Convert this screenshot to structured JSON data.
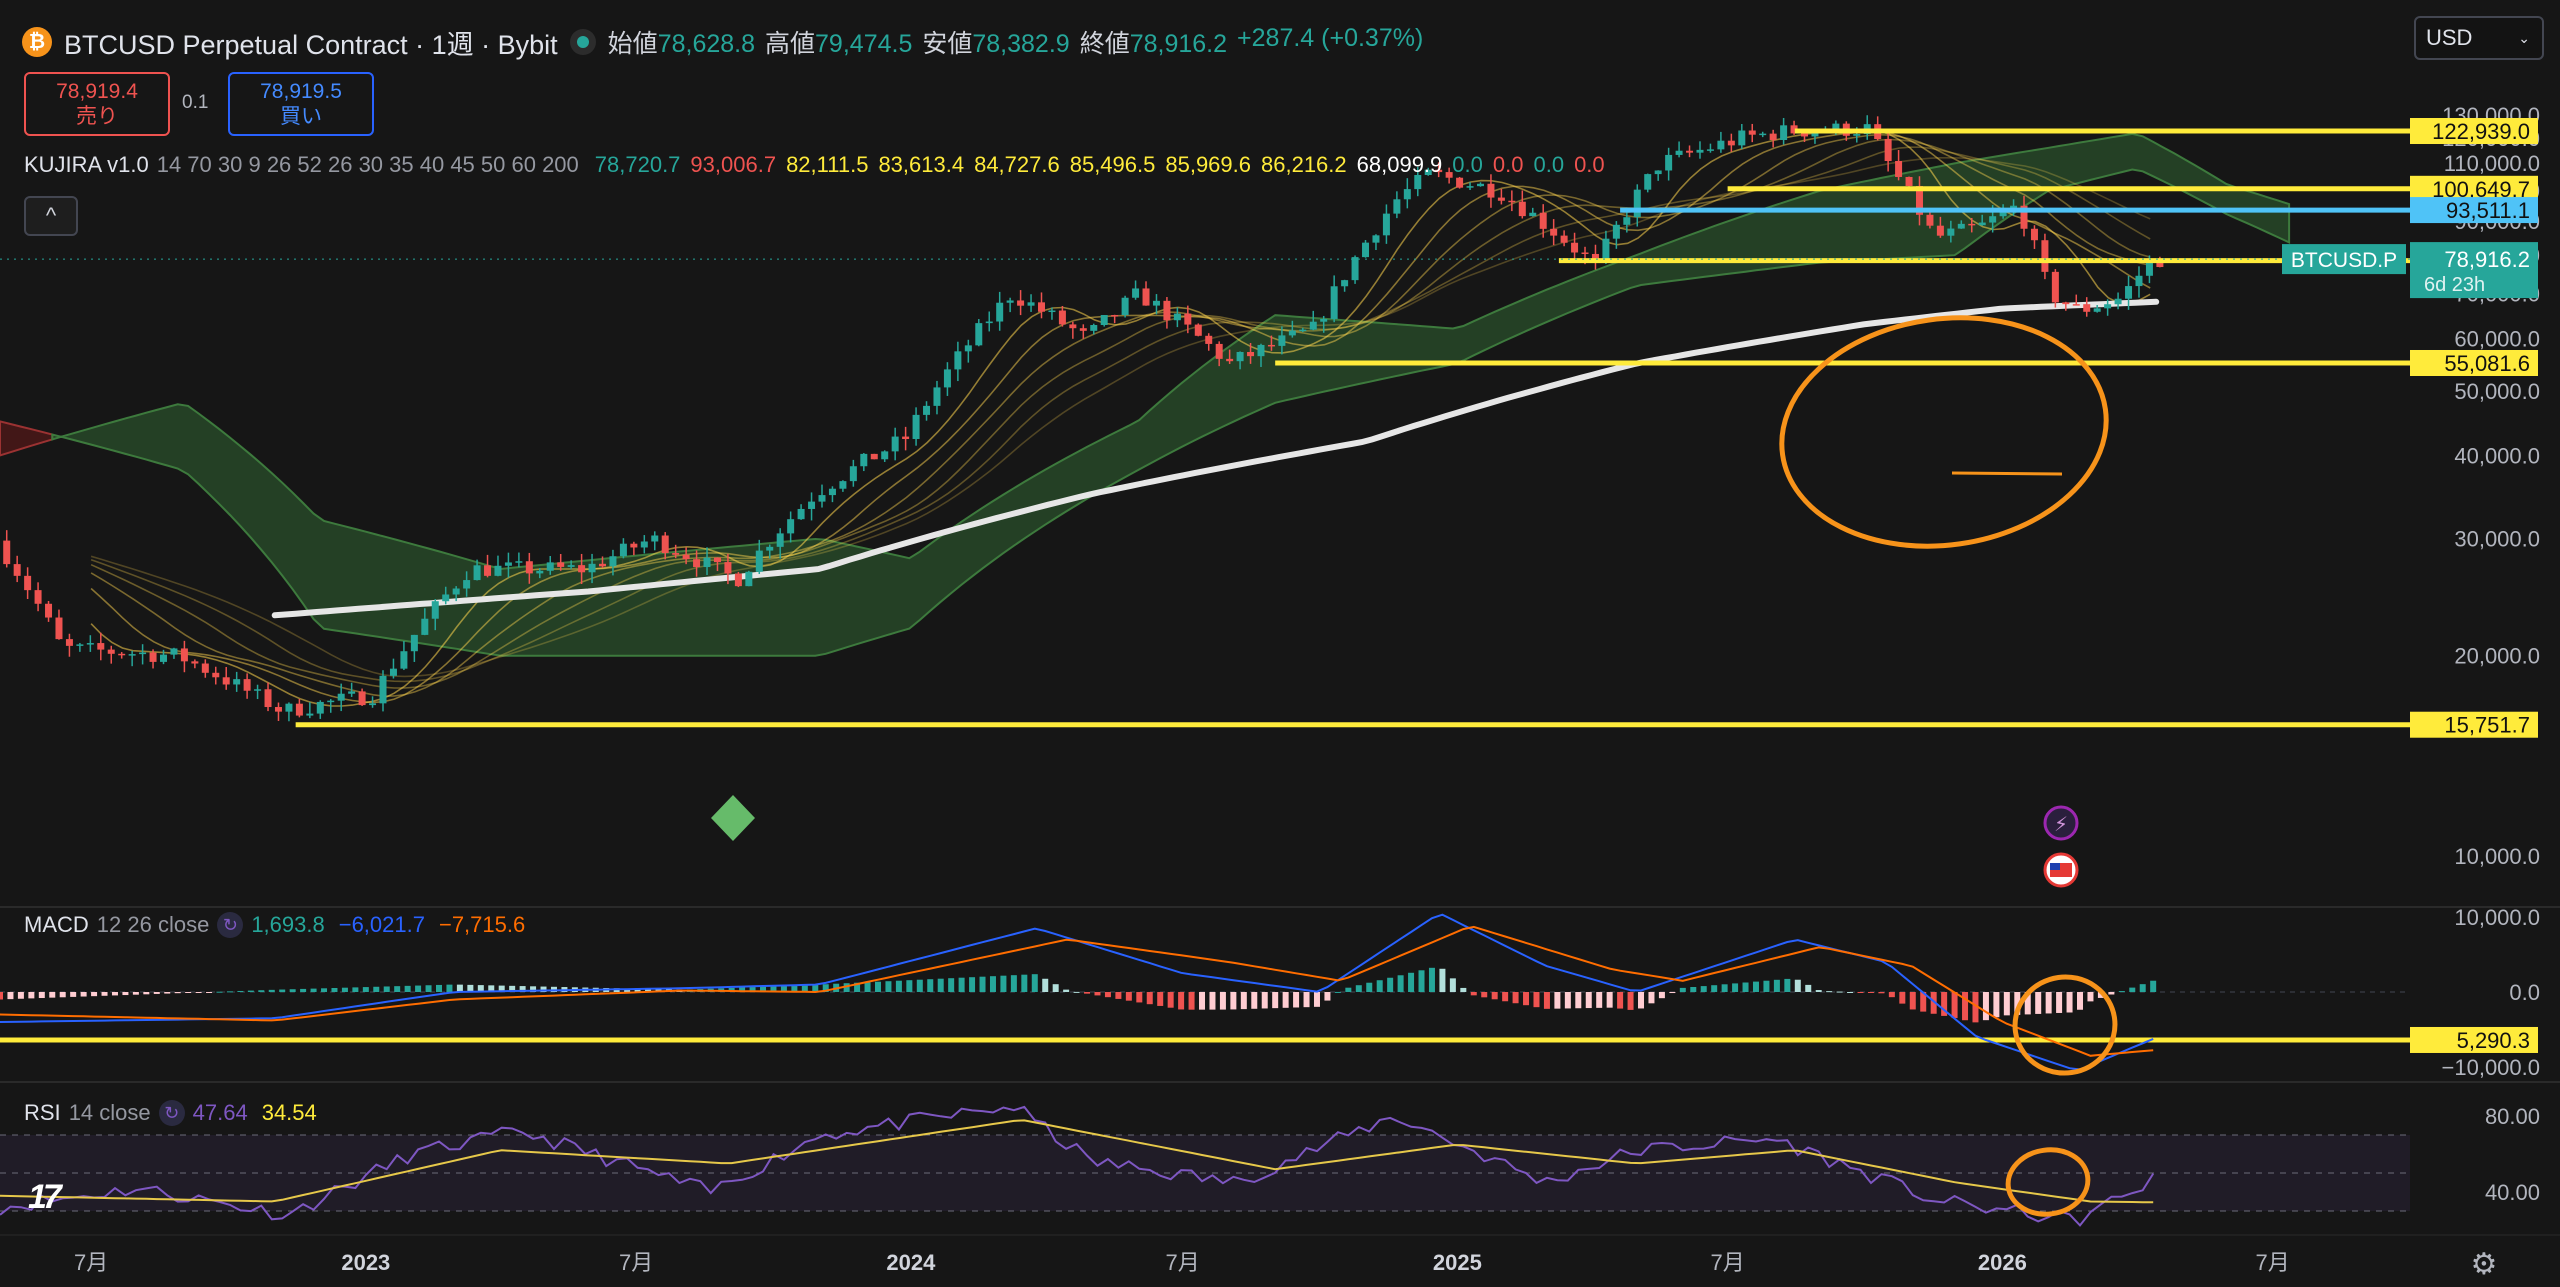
{
  "header": {
    "coin_glyph": "₿",
    "title": "BTCUSD Perpetual Contract · 1週 · Bybit",
    "ohlc": [
      {
        "label": "始値",
        "value": "78,628.8"
      },
      {
        "label": "高値",
        "value": "79,474.5"
      },
      {
        "label": "安値",
        "value": "78,382.9"
      },
      {
        "label": "終値",
        "value": "78,916.2"
      }
    ],
    "change": "+287.4 (+0.37%)"
  },
  "trade": {
    "sell_price": "78,919.4",
    "sell_label": "売り",
    "spread": "0.1",
    "buy_price": "78,919.5",
    "buy_label": "買い"
  },
  "currency": "USD",
  "collapse_glyph": "^",
  "indicators": {
    "kujira": {
      "name": "KUJIRA v1.0",
      "params": "14 70 30 9 26 52 26 30 35 40 45 50 60 200",
      "values": [
        {
          "v": "78,720.7",
          "c": "#26a69a"
        },
        {
          "v": "93,006.7",
          "c": "#ef5350"
        },
        {
          "v": "82,111.5",
          "c": "#ffeb3b"
        },
        {
          "v": "83,613.4",
          "c": "#ffeb3b"
        },
        {
          "v": "84,727.6",
          "c": "#ffeb3b"
        },
        {
          "v": "85,496.5",
          "c": "#ffeb3b"
        },
        {
          "v": "85,969.6",
          "c": "#ffeb3b"
        },
        {
          "v": "86,216.2",
          "c": "#ffeb3b"
        },
        {
          "v": "68,099.9",
          "c": "#ffffff"
        },
        {
          "v": "0.0",
          "c": "#26a69a"
        },
        {
          "v": "0.0",
          "c": "#ef5350"
        },
        {
          "v": "0.0",
          "c": "#26a69a"
        },
        {
          "v": "0.0",
          "c": "#ef5350"
        }
      ]
    },
    "macd": {
      "name": "MACD",
      "params": "12 26 close",
      "values": [
        {
          "v": "1,693.8",
          "c": "#26a69a"
        },
        {
          "v": "−6,021.7",
          "c": "#2962ff"
        },
        {
          "v": "−7,715.6",
          "c": "#ff6d00"
        }
      ]
    },
    "rsi": {
      "name": "RSI",
      "params": "14 close",
      "values": [
        {
          "v": "47.64",
          "c": "#7e57c2"
        },
        {
          "v": "34.54",
          "c": "#ffeb3b"
        }
      ]
    }
  },
  "tv_logo": "17",
  "gear_glyph": "⚙",
  "chart_data": {
    "type": "candlestick",
    "symbol_label": "BTCUSD.P",
    "countdown": "6d 23h",
    "last_price": "78,916.2",
    "price_axis_ticks": [
      "130,000.0",
      "120,000.0",
      "110,000.0",
      "100,000.0",
      "90,000.0",
      "80,000.0",
      "70,000.0",
      "60,000.0",
      "50,000.0",
      "40,000.0",
      "30,000.0",
      "20,000.0",
      "10,000.0"
    ],
    "ylim": [
      5000,
      130000
    ],
    "x_ticks": [
      {
        "label": "7月",
        "date": "2022-07-01",
        "bold": false
      },
      {
        "label": "2023",
        "date": "2023-01-01",
        "bold": true
      },
      {
        "label": "7月",
        "date": "2023-07-01",
        "bold": false
      },
      {
        "label": "2024",
        "date": "2024-01-01",
        "bold": true
      },
      {
        "label": "7月",
        "date": "2024-07-01",
        "bold": false
      },
      {
        "label": "2025",
        "date": "2025-01-01",
        "bold": true
      },
      {
        "label": "7月",
        "date": "2025-07-01",
        "bold": false
      },
      {
        "label": "2026",
        "date": "2026-01-01",
        "bold": true
      },
      {
        "label": "7月",
        "date": "2026-07-01",
        "bold": false
      }
    ],
    "horizontal_levels": [
      {
        "price": 122939.0,
        "label": "122,939.0",
        "color": "#ffeb3b",
        "from": "2025-08-15"
      },
      {
        "price": 100649.7,
        "label": "100,649.7",
        "color": "#ffeb3b",
        "from": "2025-07-01"
      },
      {
        "price": 93511.1,
        "label": "93,511.1",
        "color": "#4fc3f7",
        "from": "2025-04-20"
      },
      {
        "price": 78501.9,
        "label": "78,501.9",
        "color": "#ffeb3b",
        "from": "2025-03-10"
      },
      {
        "price": 55081.6,
        "label": "55,081.6",
        "color": "#ffeb3b",
        "from": "2024-09-01"
      },
      {
        "price": 15751.7,
        "label": "15,751.7",
        "color": "#ffeb3b",
        "from": "2022-11-15"
      },
      {
        "price": 5290.3,
        "label": "5,290.3",
        "color": "#ffeb3b",
        "from": "2022-05-01"
      }
    ],
    "price_anchors": [
      [
        "2022-05-01",
        30000
      ],
      [
        "2022-06-15",
        20500
      ],
      [
        "2022-09-01",
        20000
      ],
      [
        "2022-11-10",
        16500
      ],
      [
        "2023-01-10",
        17500
      ],
      [
        "2023-03-15",
        27000
      ],
      [
        "2023-06-01",
        27000
      ],
      [
        "2023-07-15",
        30000
      ],
      [
        "2023-09-10",
        26000
      ],
      [
        "2023-11-01",
        35000
      ],
      [
        "2024-01-01",
        42500
      ],
      [
        "2024-03-12",
        70000
      ],
      [
        "2024-05-01",
        60000
      ],
      [
        "2024-06-05",
        70000
      ],
      [
        "2024-08-05",
        55000
      ],
      [
        "2024-10-01",
        62000
      ],
      [
        "2024-11-25",
        97000
      ],
      [
        "2024-12-17",
        106000
      ],
      [
        "2025-02-01",
        100000
      ],
      [
        "2025-04-07",
        77000
      ],
      [
        "2025-05-20",
        110000
      ],
      [
        "2025-07-14",
        120000
      ],
      [
        "2025-08-15",
        123000
      ],
      [
        "2025-10-06",
        124000
      ],
      [
        "2025-10-20",
        110000
      ],
      [
        "2025-11-20",
        85000
      ],
      [
        "2025-12-20",
        88000
      ],
      [
        "2026-01-15",
        95000
      ],
      [
        "2026-02-05",
        70000
      ],
      [
        "2026-02-25",
        66000
      ],
      [
        "2026-03-25",
        69000
      ],
      [
        "2026-04-15",
        78900
      ]
    ],
    "ma200_anchors": [
      [
        "2022-11-01",
        23000
      ],
      [
        "2023-06-01",
        25000
      ],
      [
        "2023-11-01",
        27000
      ],
      [
        "2024-05-01",
        35000
      ],
      [
        "2024-11-01",
        42000
      ],
      [
        "2025-05-01",
        55000
      ],
      [
        "2025-10-01",
        63000
      ],
      [
        "2026-01-01",
        66500
      ],
      [
        "2026-04-15",
        68100
      ]
    ],
    "cloud_upper_anchors": [
      [
        "2022-05-01",
        40000
      ],
      [
        "2022-09-01",
        48000
      ],
      [
        "2022-12-01",
        32000
      ],
      [
        "2023-04-01",
        27000
      ],
      [
        "2023-11-01",
        30000
      ],
      [
        "2024-01-01",
        28000
      ],
      [
        "2024-06-01",
        45000
      ],
      [
        "2024-09-01",
        65000
      ],
      [
        "2025-01-01",
        62000
      ],
      [
        "2025-05-01",
        80000
      ],
      [
        "2025-09-01",
        100000
      ],
      [
        "2025-12-01",
        110000
      ],
      [
        "2026-02-01",
        116000
      ],
      [
        "2026-04-01",
        122000
      ],
      [
        "2026-06-01",
        102000
      ],
      [
        "2026-07-15",
        95000
      ]
    ],
    "cloud_lower_anchors": [
      [
        "2022-05-01",
        45000
      ],
      [
        "2022-09-01",
        38000
      ],
      [
        "2022-12-01",
        22000
      ],
      [
        "2023-04-01",
        20000
      ],
      [
        "2023-11-01",
        20000
      ],
      [
        "2024-01-01",
        22000
      ],
      [
        "2024-06-01",
        38000
      ],
      [
        "2024-09-01",
        48000
      ],
      [
        "2025-01-01",
        55000
      ],
      [
        "2025-05-01",
        72000
      ],
      [
        "2025-09-01",
        78000
      ],
      [
        "2025-12-01",
        80000
      ],
      [
        "2026-02-01",
        100000
      ],
      [
        "2026-04-01",
        108000
      ],
      [
        "2026-06-01",
        92000
      ],
      [
        "2026-07-15",
        83000
      ]
    ],
    "macd": {
      "axis_ticks": [
        "10,000.0",
        "0.0",
        "−10,000.0"
      ],
      "ylim": [
        -12000,
        12000
      ],
      "macd_anchors": [
        [
          "2022-05-01",
          -4000
        ],
        [
          "2022-11-01",
          -3500
        ],
        [
          "2023-03-01",
          0
        ],
        [
          "2023-08-01",
          500
        ],
        [
          "2023-11-01",
          1000
        ],
        [
          "2024-03-25",
          8500
        ],
        [
          "2024-07-01",
          2500
        ],
        [
          "2024-10-01",
          0
        ],
        [
          "2024-12-20",
          10500
        ],
        [
          "2025-03-01",
          3500
        ],
        [
          "2025-05-01",
          0
        ],
        [
          "2025-08-15",
          7000
        ],
        [
          "2025-10-15",
          4000
        ],
        [
          "2025-12-15",
          -6000
        ],
        [
          "2026-02-20",
          -10500
        ],
        [
          "2026-04-15",
          -6000
        ]
      ],
      "signal_anchors": [
        [
          "2022-05-01",
          -3000
        ],
        [
          "2022-11-01",
          -3800
        ],
        [
          "2023-03-01",
          -1000
        ],
        [
          "2023-08-01",
          200
        ],
        [
          "2023-11-01",
          0
        ],
        [
          "2024-04-15",
          7000
        ],
        [
          "2024-08-01",
          4000
        ],
        [
          "2024-10-15",
          1500
        ],
        [
          "2025-01-10",
          8800
        ],
        [
          "2025-04-15",
          3000
        ],
        [
          "2025-06-01",
          1500
        ],
        [
          "2025-09-01",
          6000
        ],
        [
          "2025-11-01",
          3500
        ],
        [
          "2026-01-01",
          -4000
        ],
        [
          "2026-03-01",
          -8500
        ],
        [
          "2026-04-15",
          -7700
        ]
      ]
    },
    "rsi": {
      "axis_ticks": [
        "80.00",
        "40.00"
      ],
      "ylim": [
        25,
        90
      ],
      "band": [
        30,
        70
      ],
      "mid": 50,
      "rsi_anchors": [
        [
          "2022-05-01",
          32
        ],
        [
          "2022-08-01",
          42
        ],
        [
          "2022-11-10",
          28
        ],
        [
          "2023-02-01",
          60
        ],
        [
          "2023-04-15",
          72
        ],
        [
          "2023-08-20",
          40
        ],
        [
          "2023-11-01",
          70
        ],
        [
          "2024-03-10",
          85
        ],
        [
          "2024-05-01",
          56
        ],
        [
          "2024-08-05",
          45
        ],
        [
          "2024-11-20",
          80
        ],
        [
          "2025-03-01",
          45
        ],
        [
          "2025-05-01",
          62
        ],
        [
          "2025-08-01",
          68
        ],
        [
          "2025-11-20",
          35
        ],
        [
          "2026-02-20",
          25
        ],
        [
          "2026-04-15",
          47.64
        ]
      ],
      "rsi_ma_anchors": [
        [
          "2022-05-01",
          38
        ],
        [
          "2022-11-01",
          35
        ],
        [
          "2023-04-01",
          62
        ],
        [
          "2023-09-01",
          55
        ],
        [
          "2024-03-15",
          78
        ],
        [
          "2024-09-01",
          52
        ],
        [
          "2025-01-01",
          65
        ],
        [
          "2025-05-01",
          55
        ],
        [
          "2025-08-15",
          62
        ],
        [
          "2025-12-01",
          45
        ],
        [
          "2026-03-01",
          35
        ],
        [
          "2026-04-15",
          34.54
        ]
      ]
    }
  }
}
